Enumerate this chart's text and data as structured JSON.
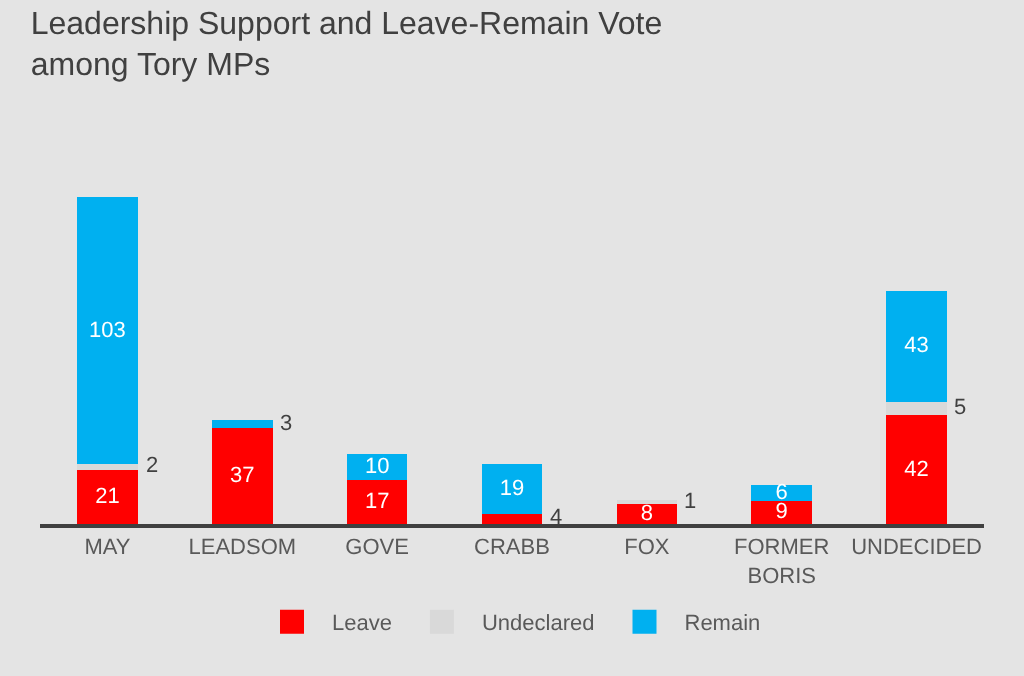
{
  "chart_data": {
    "type": "bar",
    "title": "Leadership Support and Leave-Remain Vote\namong Tory MPs",
    "categories": [
      "MAY",
      "LEADSOM",
      "GOVE",
      "CRABB",
      "FOX",
      "FORMER\nBORIS",
      "UNDECIDED"
    ],
    "stacked": true,
    "data_labels": true,
    "legend": "bottom",
    "series": [
      {
        "name": "Leave",
        "color": "#ff0000",
        "values": [
          21,
          37,
          17,
          4,
          8,
          9,
          42
        ]
      },
      {
        "name": "Undeclared",
        "color": "#d9d9d9",
        "values": [
          2,
          null,
          null,
          null,
          1,
          null,
          5
        ]
      },
      {
        "name": "Remain",
        "color": "#00b0f0",
        "values": [
          103,
          3,
          10,
          19,
          null,
          6,
          43
        ]
      }
    ]
  }
}
